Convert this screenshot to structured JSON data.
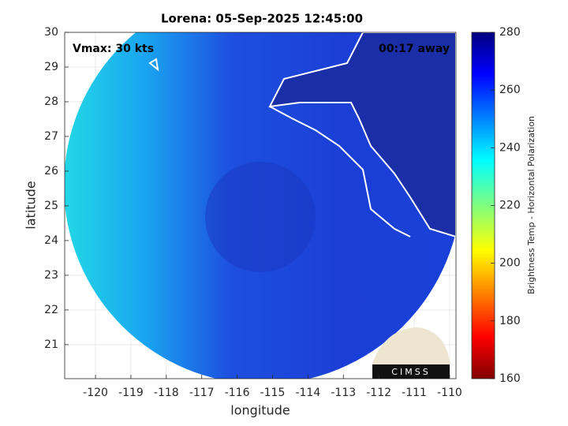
{
  "map": {
    "title": "Lorena: 05-Sep-2025 12:45:00",
    "annotations": [
      "Vmax: 30 kts",
      "00:17 away"
    ],
    "xlabel": "longitude",
    "ylabel": "latitude",
    "xlim": [
      -120.87,
      -109.82
    ],
    "ylim": [
      20.02,
      30
    ],
    "xticks": [
      -120,
      -119,
      -118,
      -117,
      -116,
      -115,
      -114,
      -113,
      -112,
      -111,
      -110
    ],
    "yticks": [
      21,
      22,
      23,
      24,
      25,
      26,
      27,
      28,
      29,
      30
    ],
    "grid": true,
    "colorbar": {
      "label": "Brightness Temp - Horizontal Polarization",
      "lim": [
        160,
        280
      ],
      "ticks": [
        160,
        180,
        200,
        220,
        240,
        260,
        280
      ]
    },
    "logo": "CIMSS"
  }
}
